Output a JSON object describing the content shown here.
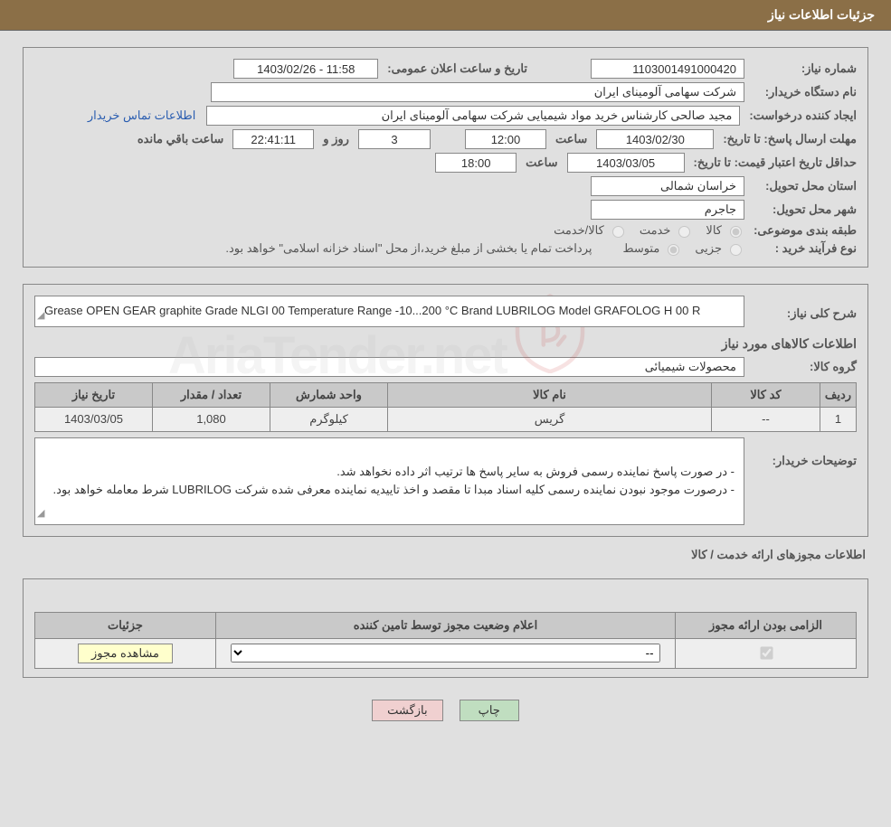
{
  "header": {
    "title": "جزئیات اطلاعات نیاز"
  },
  "need": {
    "number_label": "شماره نیاز:",
    "number": "1103001491000420",
    "announce_label": "تاریخ و ساعت اعلان عمومی:",
    "announce_value": "1403/02/26 - 11:58",
    "buyer_label": "نام دستگاه خریدار:",
    "buyer": "شرکت سهامی آلومینای ایران",
    "requester_label": "ایجاد کننده درخواست:",
    "requester": "مجید صالحی کارشناس خرید مواد شیمیایی شرکت سهامی آلومینای ایران",
    "contact_link": "اطلاعات تماس خریدار",
    "deadline_label": "مهلت ارسال پاسخ:",
    "to_date_label": "تا تاریخ:",
    "deadline_date": "1403/02/30",
    "time_label": "ساعت",
    "deadline_time": "12:00",
    "remaining_days": "3",
    "days_and_label": "روز و",
    "remaining_time": "22:41:11",
    "remaining_suffix": "ساعت باقي مانده",
    "validity_label": "حداقل تاریخ اعتبار قیمت:",
    "validity_date": "1403/03/05",
    "validity_time": "18:00",
    "province_label": "استان محل تحویل:",
    "province": "خراسان شمالی",
    "city_label": "شهر محل تحویل:",
    "city": "جاجرم",
    "classification_label": "طبقه بندی موضوعی:",
    "class_options": {
      "goods": "کالا",
      "service": "خدمت",
      "both": "کالا/خدمت"
    },
    "process_label": "نوع فرآیند خرید :",
    "process_options": {
      "partial": "جزیی",
      "medium": "متوسط"
    },
    "process_note": "پرداخت تمام یا بخشی از مبلغ خرید،از محل \"اسناد خزانه اسلامی\" خواهد بود."
  },
  "detail": {
    "summary_label": "شرح کلی نیاز:",
    "summary": "Grease OPEN GEAR graphite Grade NLGI 00 Temperature Range -10...200 °C Brand LUBRILOG Model GRAFOLOG H 00 R",
    "items_title": "اطلاعات کالاهای مورد نیاز",
    "group_label": "گروه کالا:",
    "group": "محصولات شیمیائی",
    "table": {
      "headers": [
        "ردیف",
        "کد کالا",
        "نام کالا",
        "واحد شمارش",
        "تعداد / مقدار",
        "تاریخ نیاز"
      ],
      "rows": [
        [
          "1",
          "--",
          "گریس",
          "کیلوگرم",
          "1,080",
          "1403/03/05"
        ]
      ]
    },
    "buyer_notes_label": "توضیحات خریدار:",
    "buyer_notes": "- در صورت پاسخ نماینده رسمی فروش به سایر پاسخ ها ترتیب اثر داده نخواهد شد.\n- درصورت موجود نبودن نماینده رسمی کلیه اسناد مبدا تا مقصد و اخذ تاییدیه نماینده معرفی شده شرکت LUBRILOG شرط معامله خواهد بود."
  },
  "license": {
    "section_title": "اطلاعات مجوزهای ارائه خدمت / کالا",
    "headers": [
      "الزامی بودن ارائه مجوز",
      "اعلام وضعیت مجوز توسط تامین کننده",
      "جزئیات"
    ],
    "select_placeholder": "--",
    "view_button": "مشاهده مجوز"
  },
  "footer": {
    "print": "چاپ",
    "back": "بازگشت"
  },
  "watermark": {
    "text": "AriaTender.net"
  },
  "colors": {
    "header_bg": "#8b6f47",
    "page_bg": "#e0e0e0",
    "table_header_bg": "#c9c9c9",
    "border": "#888888",
    "btn_green": "#c0dec0",
    "btn_pink": "#f0d0d0",
    "btn_yellow": "#ffffcc",
    "link": "#2a5db0"
  }
}
